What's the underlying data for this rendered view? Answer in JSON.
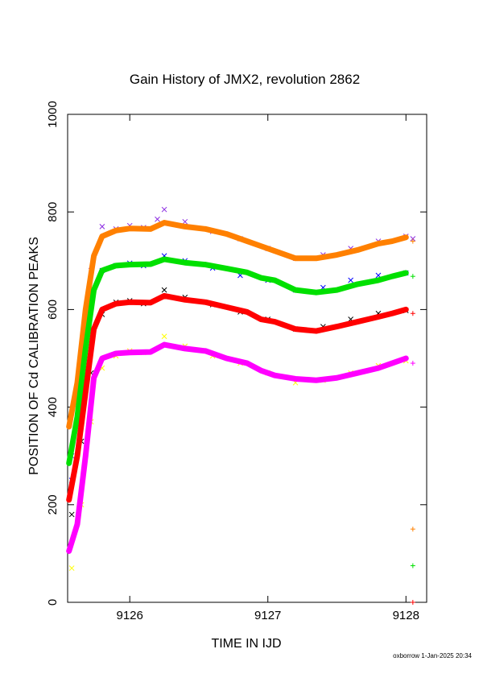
{
  "title": "Gain History of JMX2, revolution 2862",
  "footer": "oxborrow  1-Jan-2025 20:34",
  "chart_data": {
    "type": "scatter",
    "title": "Gain History of JMX2, revolution 2862",
    "xlabel": "TIME IN IJD",
    "ylabel": "POSITION OF Cd CALIBRATION PEAKS",
    "xlim": [
      9125.55,
      9128.15
    ],
    "ylim": [
      0,
      1000
    ],
    "x_ticks": [
      9126,
      9127,
      9128
    ],
    "y_ticks": [
      0,
      200,
      400,
      600,
      800,
      1000
    ],
    "legend": "none",
    "grid": false,
    "series": [
      {
        "color": "#8b2be2",
        "marker": "x",
        "role": "scatter",
        "values": [
          [
            9125.58,
            300
          ],
          [
            9125.65,
            450
          ],
          [
            9125.72,
            680
          ],
          [
            9125.8,
            770
          ],
          [
            9125.9,
            765
          ],
          [
            9126.0,
            772
          ],
          [
            9126.1,
            768
          ],
          [
            9126.2,
            785
          ],
          [
            9126.25,
            805
          ],
          [
            9126.4,
            780
          ],
          [
            9126.6,
            760
          ],
          [
            9126.8,
            745
          ],
          [
            9127.0,
            725
          ],
          [
            9127.2,
            705
          ],
          [
            9127.4,
            712
          ],
          [
            9127.6,
            725
          ],
          [
            9127.8,
            740
          ],
          [
            9128.0,
            750
          ],
          [
            9128.05,
            745
          ]
        ]
      },
      {
        "color": "#ff8000",
        "marker": "+",
        "role": "smoothed",
        "values": [
          [
            9125.56,
            360
          ],
          [
            9125.62,
            450
          ],
          [
            9125.68,
            600
          ],
          [
            9125.74,
            710
          ],
          [
            9125.8,
            750
          ],
          [
            9125.9,
            762
          ],
          [
            9126.0,
            766
          ],
          [
            9126.15,
            765
          ],
          [
            9126.25,
            778
          ],
          [
            9126.4,
            770
          ],
          [
            9126.55,
            765
          ],
          [
            9126.7,
            755
          ],
          [
            9126.85,
            740
          ],
          [
            9126.95,
            730
          ],
          [
            9127.05,
            720
          ],
          [
            9127.2,
            705
          ],
          [
            9127.35,
            705
          ],
          [
            9127.5,
            712
          ],
          [
            9127.65,
            722
          ],
          [
            9127.8,
            735
          ],
          [
            9127.9,
            740
          ],
          [
            9128.0,
            748
          ],
          [
            9128.05,
            740
          ],
          [
            9128.05,
            150
          ]
        ]
      },
      {
        "color": "#0000ff",
        "marker": "x",
        "role": "scatter",
        "values": [
          [
            9125.58,
            250
          ],
          [
            9125.65,
            400
          ],
          [
            9125.72,
            560
          ],
          [
            9125.8,
            680
          ],
          [
            9125.9,
            690
          ],
          [
            9126.0,
            695
          ],
          [
            9126.1,
            690
          ],
          [
            9126.25,
            710
          ],
          [
            9126.4,
            700
          ],
          [
            9126.6,
            685
          ],
          [
            9126.8,
            670
          ],
          [
            9127.0,
            660
          ],
          [
            9127.2,
            640
          ],
          [
            9127.4,
            645
          ],
          [
            9127.6,
            660
          ],
          [
            9127.8,
            670
          ],
          [
            9128.0,
            675
          ]
        ]
      },
      {
        "color": "#00e000",
        "marker": "+",
        "role": "smoothed",
        "values": [
          [
            9125.56,
            285
          ],
          [
            9125.62,
            380
          ],
          [
            9125.68,
            520
          ],
          [
            9125.74,
            640
          ],
          [
            9125.8,
            680
          ],
          [
            9125.9,
            690
          ],
          [
            9126.0,
            692
          ],
          [
            9126.15,
            693
          ],
          [
            9126.25,
            703
          ],
          [
            9126.4,
            696
          ],
          [
            9126.55,
            692
          ],
          [
            9126.7,
            684
          ],
          [
            9126.85,
            676
          ],
          [
            9126.95,
            665
          ],
          [
            9127.05,
            660
          ],
          [
            9127.2,
            640
          ],
          [
            9127.35,
            635
          ],
          [
            9127.5,
            640
          ],
          [
            9127.65,
            652
          ],
          [
            9127.8,
            660
          ],
          [
            9127.9,
            668
          ],
          [
            9128.0,
            675
          ],
          [
            9128.05,
            668
          ],
          [
            9128.05,
            75
          ]
        ]
      },
      {
        "color": "#000000",
        "marker": "x",
        "role": "scatter",
        "values": [
          [
            9125.58,
            180
          ],
          [
            9125.65,
            330
          ],
          [
            9125.72,
            470
          ],
          [
            9125.8,
            590
          ],
          [
            9125.9,
            615
          ],
          [
            9126.0,
            618
          ],
          [
            9126.1,
            612
          ],
          [
            9126.25,
            640
          ],
          [
            9126.4,
            625
          ],
          [
            9126.6,
            610
          ],
          [
            9126.8,
            595
          ],
          [
            9127.0,
            580
          ],
          [
            9127.2,
            560
          ],
          [
            9127.4,
            565
          ],
          [
            9127.6,
            580
          ],
          [
            9127.8,
            592
          ],
          [
            9128.0,
            598
          ]
        ]
      },
      {
        "color": "#ff0000",
        "marker": "+",
        "role": "smoothed",
        "values": [
          [
            9125.56,
            210
          ],
          [
            9125.62,
            300
          ],
          [
            9125.68,
            430
          ],
          [
            9125.74,
            560
          ],
          [
            9125.8,
            600
          ],
          [
            9125.9,
            612
          ],
          [
            9126.0,
            615
          ],
          [
            9126.15,
            614
          ],
          [
            9126.25,
            628
          ],
          [
            9126.4,
            620
          ],
          [
            9126.55,
            615
          ],
          [
            9126.7,
            605
          ],
          [
            9126.85,
            595
          ],
          [
            9126.95,
            580
          ],
          [
            9127.05,
            575
          ],
          [
            9127.2,
            560
          ],
          [
            9127.35,
            556
          ],
          [
            9127.5,
            565
          ],
          [
            9127.65,
            575
          ],
          [
            9127.8,
            585
          ],
          [
            9127.9,
            592
          ],
          [
            9128.0,
            600
          ],
          [
            9128.05,
            592
          ],
          [
            9128.05,
            0
          ]
        ]
      },
      {
        "color": "#ffff00",
        "marker": "x",
        "role": "scatter",
        "values": [
          [
            9125.58,
            70
          ],
          [
            9125.65,
            200
          ],
          [
            9125.72,
            370
          ],
          [
            9125.8,
            480
          ],
          [
            9125.9,
            505
          ],
          [
            9126.0,
            515
          ],
          [
            9126.1,
            512
          ],
          [
            9126.25,
            545
          ],
          [
            9126.4,
            525
          ],
          [
            9126.6,
            505
          ],
          [
            9126.8,
            490
          ],
          [
            9127.0,
            470
          ],
          [
            9127.2,
            450
          ],
          [
            9127.4,
            455
          ],
          [
            9127.6,
            470
          ],
          [
            9127.8,
            485
          ],
          [
            9128.0,
            495
          ]
        ]
      },
      {
        "color": "#ff00ff",
        "marker": "+",
        "role": "smoothed",
        "values": [
          [
            9125.56,
            105
          ],
          [
            9125.62,
            160
          ],
          [
            9125.68,
            300
          ],
          [
            9125.74,
            460
          ],
          [
            9125.8,
            500
          ],
          [
            9125.9,
            510
          ],
          [
            9126.0,
            512
          ],
          [
            9126.15,
            513
          ],
          [
            9126.25,
            528
          ],
          [
            9126.4,
            520
          ],
          [
            9126.55,
            515
          ],
          [
            9126.7,
            500
          ],
          [
            9126.85,
            490
          ],
          [
            9126.95,
            475
          ],
          [
            9127.05,
            465
          ],
          [
            9127.2,
            458
          ],
          [
            9127.35,
            455
          ],
          [
            9127.5,
            460
          ],
          [
            9127.65,
            470
          ],
          [
            9127.8,
            480
          ],
          [
            9127.9,
            490
          ],
          [
            9128.0,
            500
          ],
          [
            9128.05,
            490
          ]
        ]
      }
    ]
  }
}
